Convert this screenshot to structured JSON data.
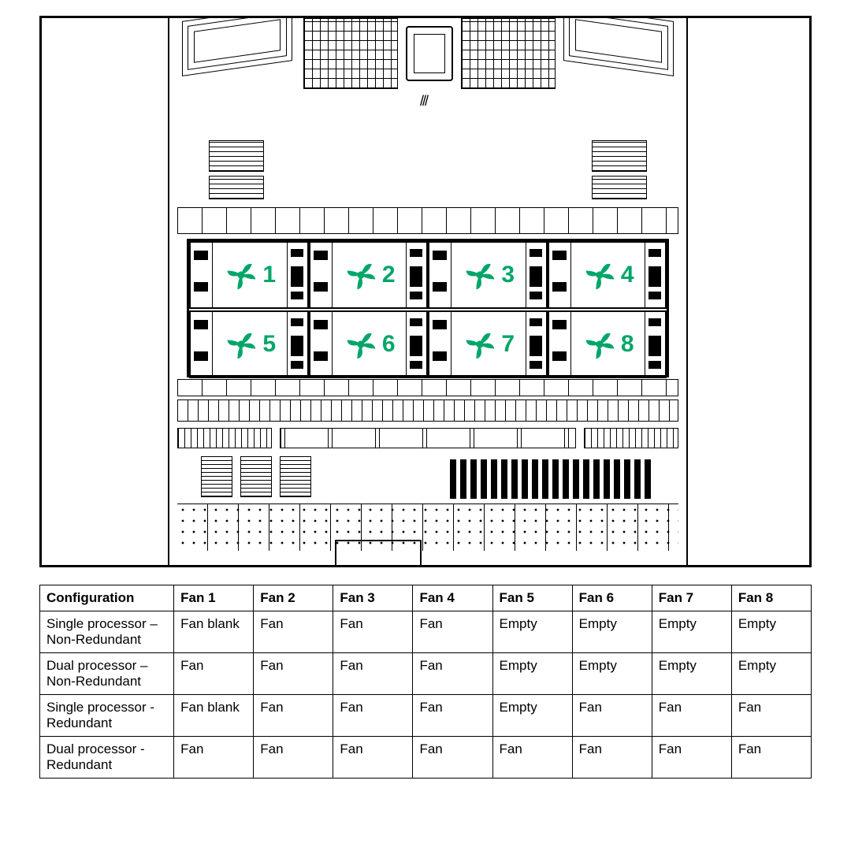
{
  "fan_color": "#00a669",
  "fans": [
    {
      "num": "1"
    },
    {
      "num": "2"
    },
    {
      "num": "3"
    },
    {
      "num": "4"
    },
    {
      "num": "5"
    },
    {
      "num": "6"
    },
    {
      "num": "7"
    },
    {
      "num": "8"
    }
  ],
  "table": {
    "columns": [
      "Configuration",
      "Fan 1",
      "Fan 2",
      "Fan 3",
      "Fan 4",
      "Fan 5",
      "Fan 6",
      "Fan 7",
      "Fan 8"
    ],
    "rows": [
      [
        "Single processor – Non-Redundant",
        "Fan blank",
        "Fan",
        "Fan",
        "Fan",
        "Empty",
        "Empty",
        "Empty",
        "Empty"
      ],
      [
        "Dual processor – Non-Redundant",
        "Fan",
        "Fan",
        "Fan",
        "Fan",
        "Empty",
        "Empty",
        "Empty",
        "Empty"
      ],
      [
        "Single processor - Redundant",
        "Fan blank",
        "Fan",
        "Fan",
        "Fan",
        "Empty",
        "Fan",
        "Fan",
        "Fan"
      ],
      [
        "Dual processor - Redundant",
        "Fan",
        "Fan",
        "Fan",
        "Fan",
        "Fan",
        "Fan",
        "Fan",
        "Fan"
      ]
    ]
  },
  "diagram": {
    "type": "technical-line-drawing",
    "line_color": "#000000",
    "background": "#ffffff",
    "fan_rows": 2,
    "fan_cols": 4
  }
}
